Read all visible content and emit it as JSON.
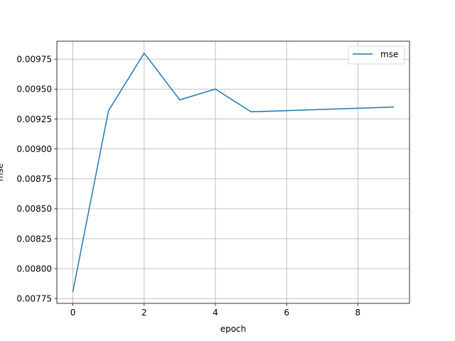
{
  "chart_data": {
    "type": "line",
    "title": "",
    "xlabel": "epoch",
    "ylabel": "mse",
    "x": [
      0,
      1,
      2,
      3,
      4,
      5,
      6,
      7,
      8,
      9
    ],
    "series": [
      {
        "name": "mse",
        "values": [
          0.00781,
          0.00932,
          0.0098,
          0.00941,
          0.0095,
          0.00931,
          0.00932,
          0.00933,
          0.00934,
          0.00935
        ],
        "color": "#1f77b4"
      }
    ],
    "xlim": [
      -0.45,
      9.45
    ],
    "ylim": [
      0.00771,
      0.0099
    ],
    "x_ticks": [
      0,
      2,
      4,
      6,
      8
    ],
    "x_tick_labels": [
      "0",
      "2",
      "4",
      "6",
      "8"
    ],
    "y_ticks": [
      0.00775,
      0.008,
      0.00825,
      0.0085,
      0.00875,
      0.009,
      0.00925,
      0.0095,
      0.00975
    ],
    "y_tick_labels": [
      "0.00775",
      "0.00800",
      "0.00825",
      "0.00850",
      "0.00875",
      "0.00900",
      "0.00925",
      "0.00950",
      "0.00975"
    ],
    "grid": true,
    "legend": {
      "position": "top-right",
      "entries": [
        "mse"
      ]
    }
  }
}
